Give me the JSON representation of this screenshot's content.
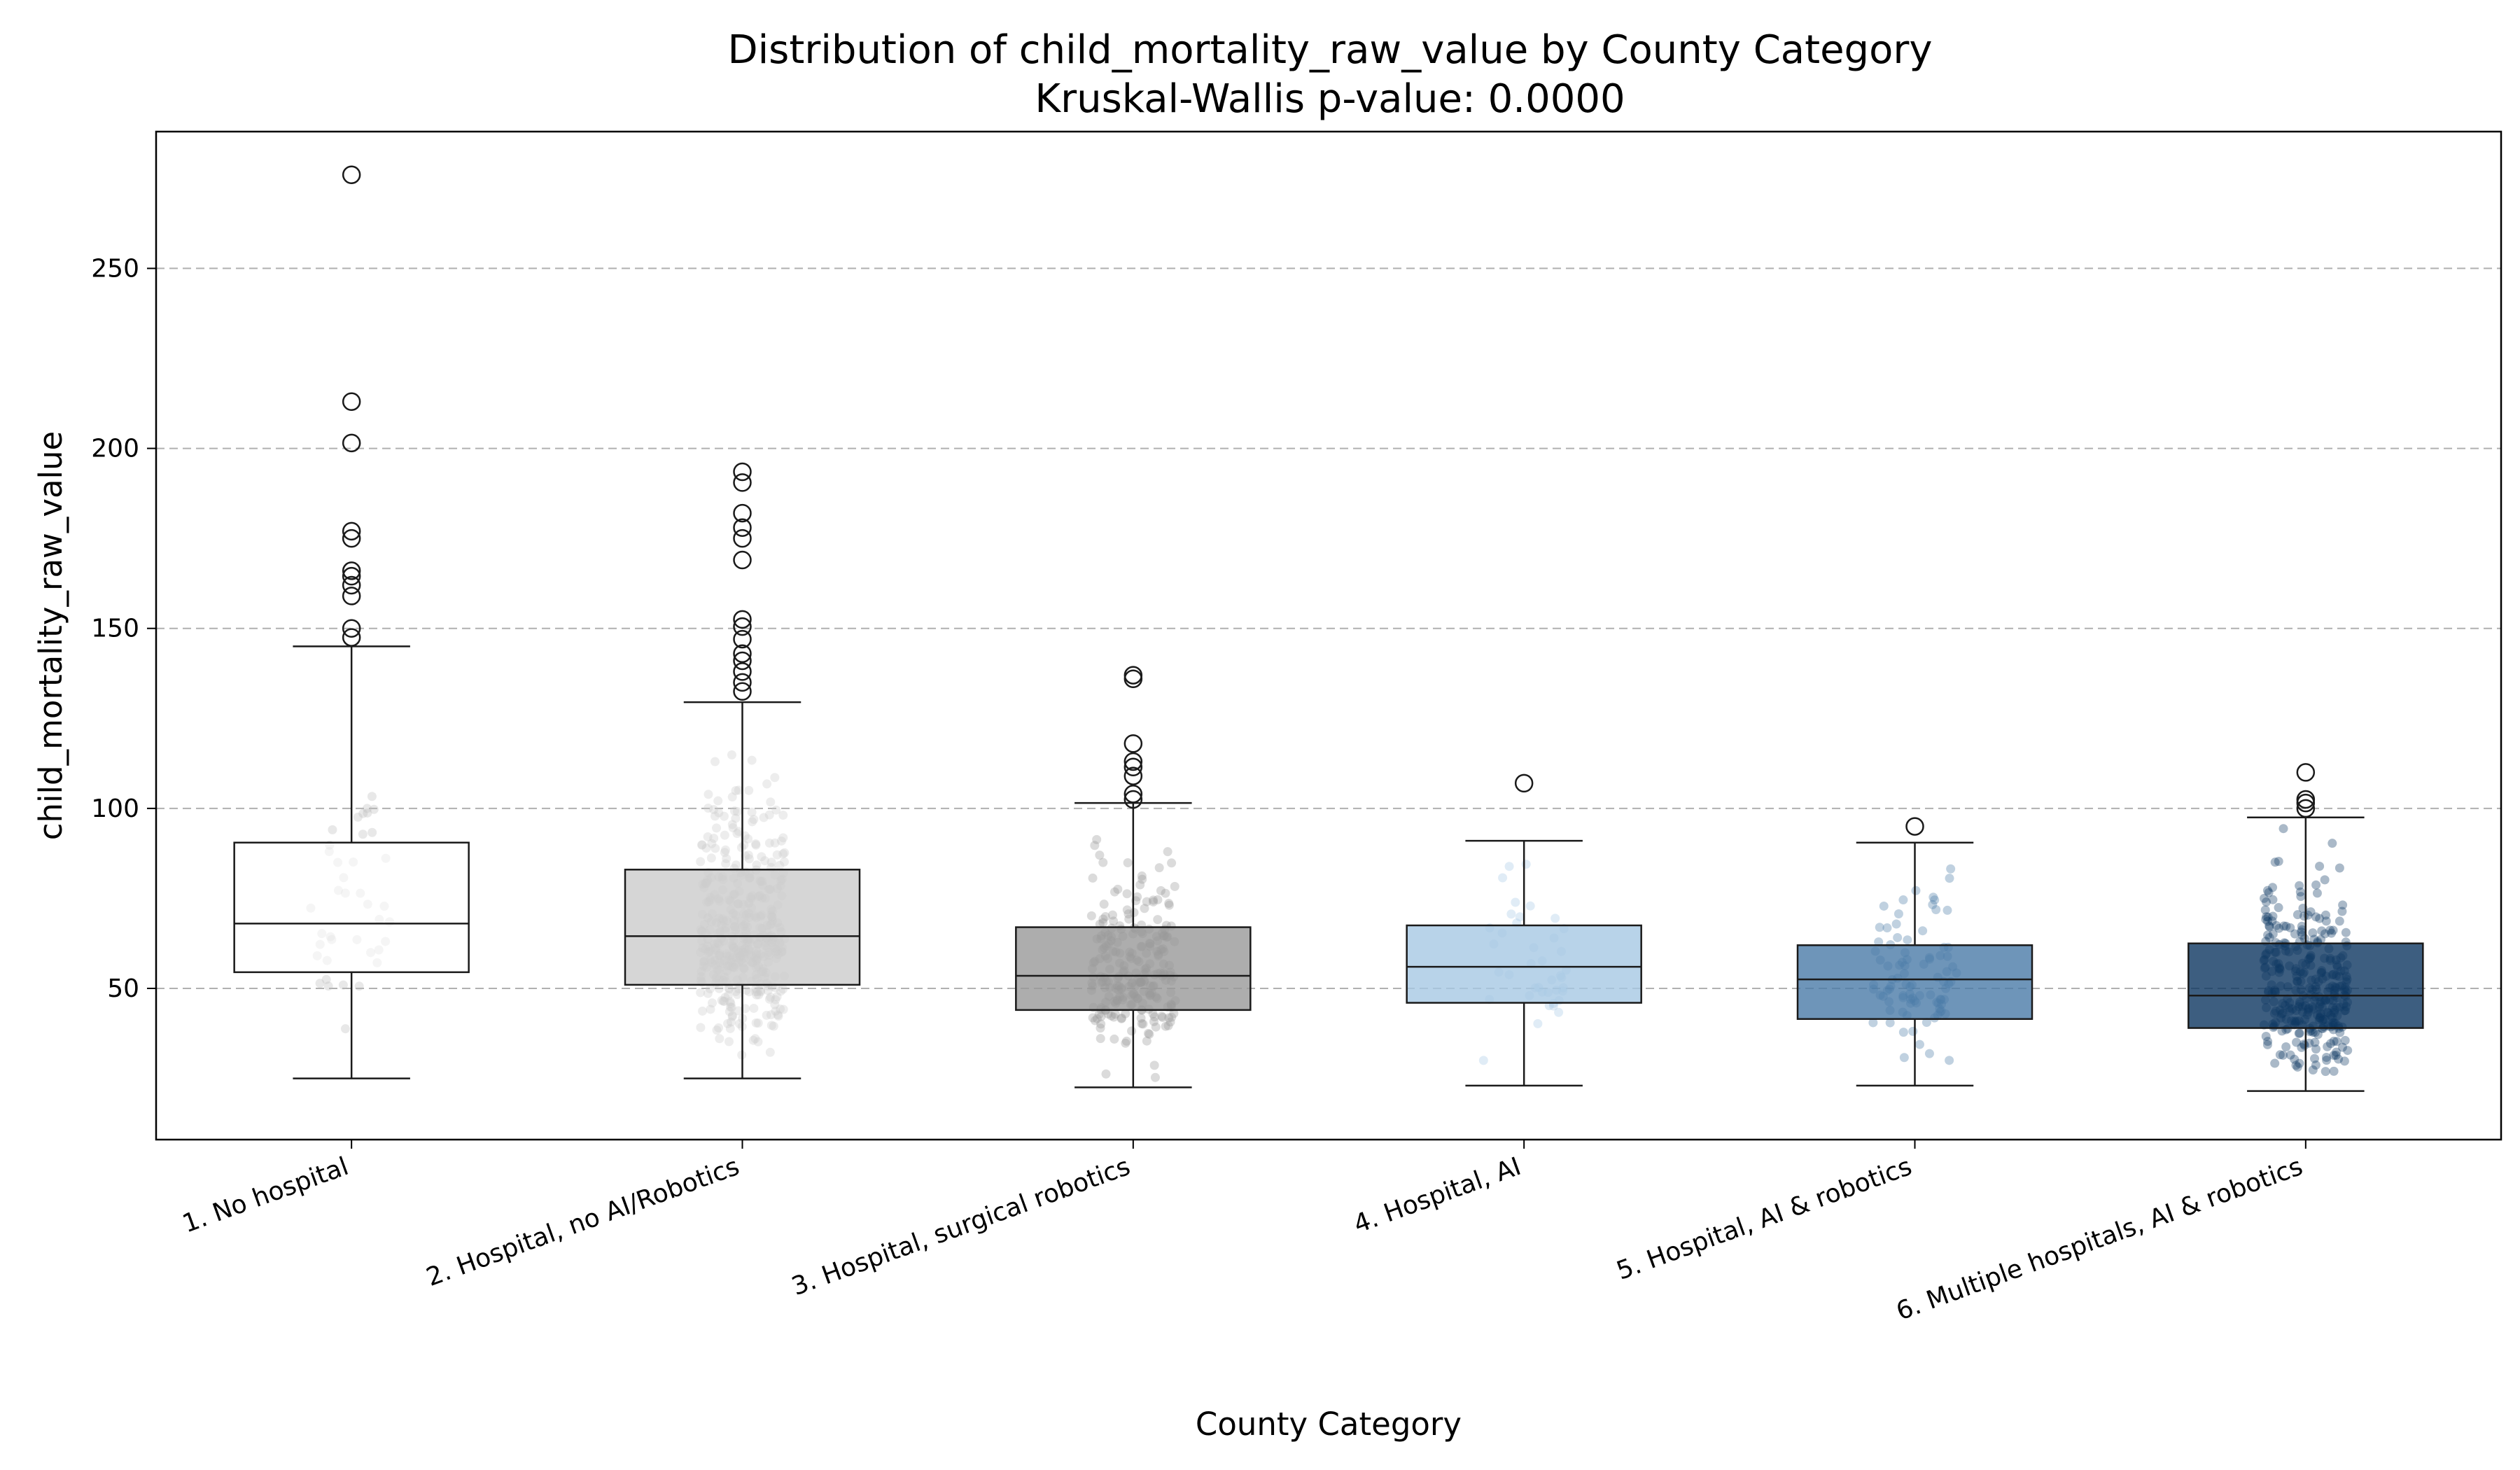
{
  "chart_data": {
    "type": "box",
    "title": "Distribution of child_mortality_raw_value by County Category",
    "subtitle": "Kruskal-Wallis p-value: 0.0000",
    "xlabel": "County Category",
    "ylabel": "child_mortality_raw_value",
    "ylim": [
      8,
      288
    ],
    "yticks": [
      50,
      100,
      150,
      200,
      250
    ],
    "grid": "y-dashed",
    "categories": [
      "1. No hospital",
      "2. Hospital, no AI/Robotics",
      "3. Hospital, surgical robotics",
      "4. Hospital, AI",
      "5. Hospital, AI & robotics",
      "6. Multiple hospitals, AI & robotics"
    ],
    "colors": [
      "#ffffff",
      "#cccccc",
      "#999999",
      "#a6c8e4",
      "#4a7ba7",
      "#0c3660"
    ],
    "boxes": [
      {
        "whislo": 25,
        "q1": 54.5,
        "med": 68,
        "q3": 90.5,
        "whishi": 145,
        "fliers": [
          147.5,
          150,
          159,
          162,
          164.5,
          166,
          175,
          177,
          201.5,
          213,
          276
        ]
      },
      {
        "whislo": 25,
        "q1": 51,
        "med": 64.5,
        "q3": 83,
        "whishi": 129.5,
        "fliers": [
          132.5,
          135,
          138,
          141,
          143,
          147,
          150.5,
          152.5,
          169,
          175,
          178,
          182,
          190.5,
          193.5
        ]
      },
      {
        "whislo": 22.5,
        "q1": 44,
        "med": 53.5,
        "q3": 67,
        "whishi": 101.5,
        "fliers": [
          102.5,
          104,
          109,
          111.5,
          113,
          118,
          136,
          137
        ]
      },
      {
        "whislo": 23,
        "q1": 46,
        "med": 56,
        "q3": 67.5,
        "whishi": 91,
        "fliers": [
          107
        ]
      },
      {
        "whislo": 23,
        "q1": 41.5,
        "med": 52.5,
        "q3": 62,
        "whishi": 90.5,
        "fliers": [
          95
        ]
      },
      {
        "whislo": 21.5,
        "q1": 39,
        "med": 48,
        "q3": 62.5,
        "whishi": 97.5,
        "fliers": [
          100,
          101.5,
          102.5,
          110
        ]
      }
    ],
    "strip_points_per_category": [
      40,
      420,
      240,
      40,
      90,
      320
    ]
  }
}
